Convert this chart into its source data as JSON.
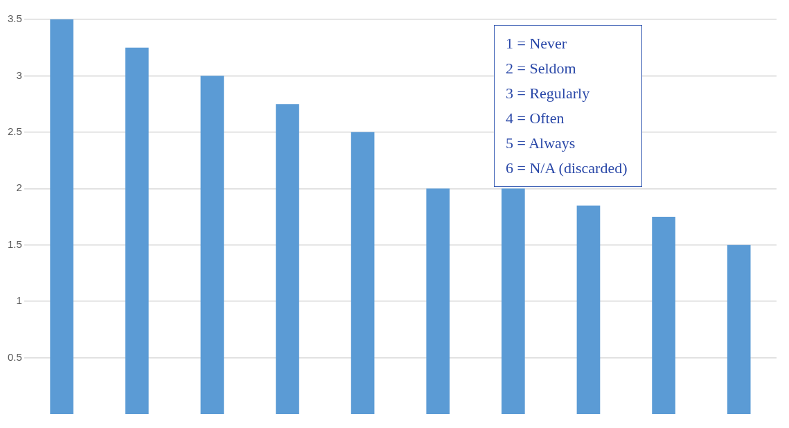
{
  "chart_data": {
    "type": "bar",
    "categories": [
      null,
      null,
      null,
      null,
      null,
      null,
      null,
      null,
      null,
      null
    ],
    "values": [
      3.5,
      3.25,
      3.0,
      2.75,
      2.5,
      2.0,
      2.0,
      1.85,
      1.75,
      1.5
    ],
    "color": "#5b9bd5",
    "ylim": [
      0,
      3.5
    ],
    "yticks": [
      0.5,
      1,
      1.5,
      2,
      2.5,
      3,
      3.5
    ],
    "grid": "y",
    "tick_labels": "y",
    "annotations": [
      "1 = Never",
      "2 = Seldom",
      "3 = Regularly",
      "4 = Often",
      "5 = Always",
      "6 = N/A (discarded)"
    ]
  }
}
